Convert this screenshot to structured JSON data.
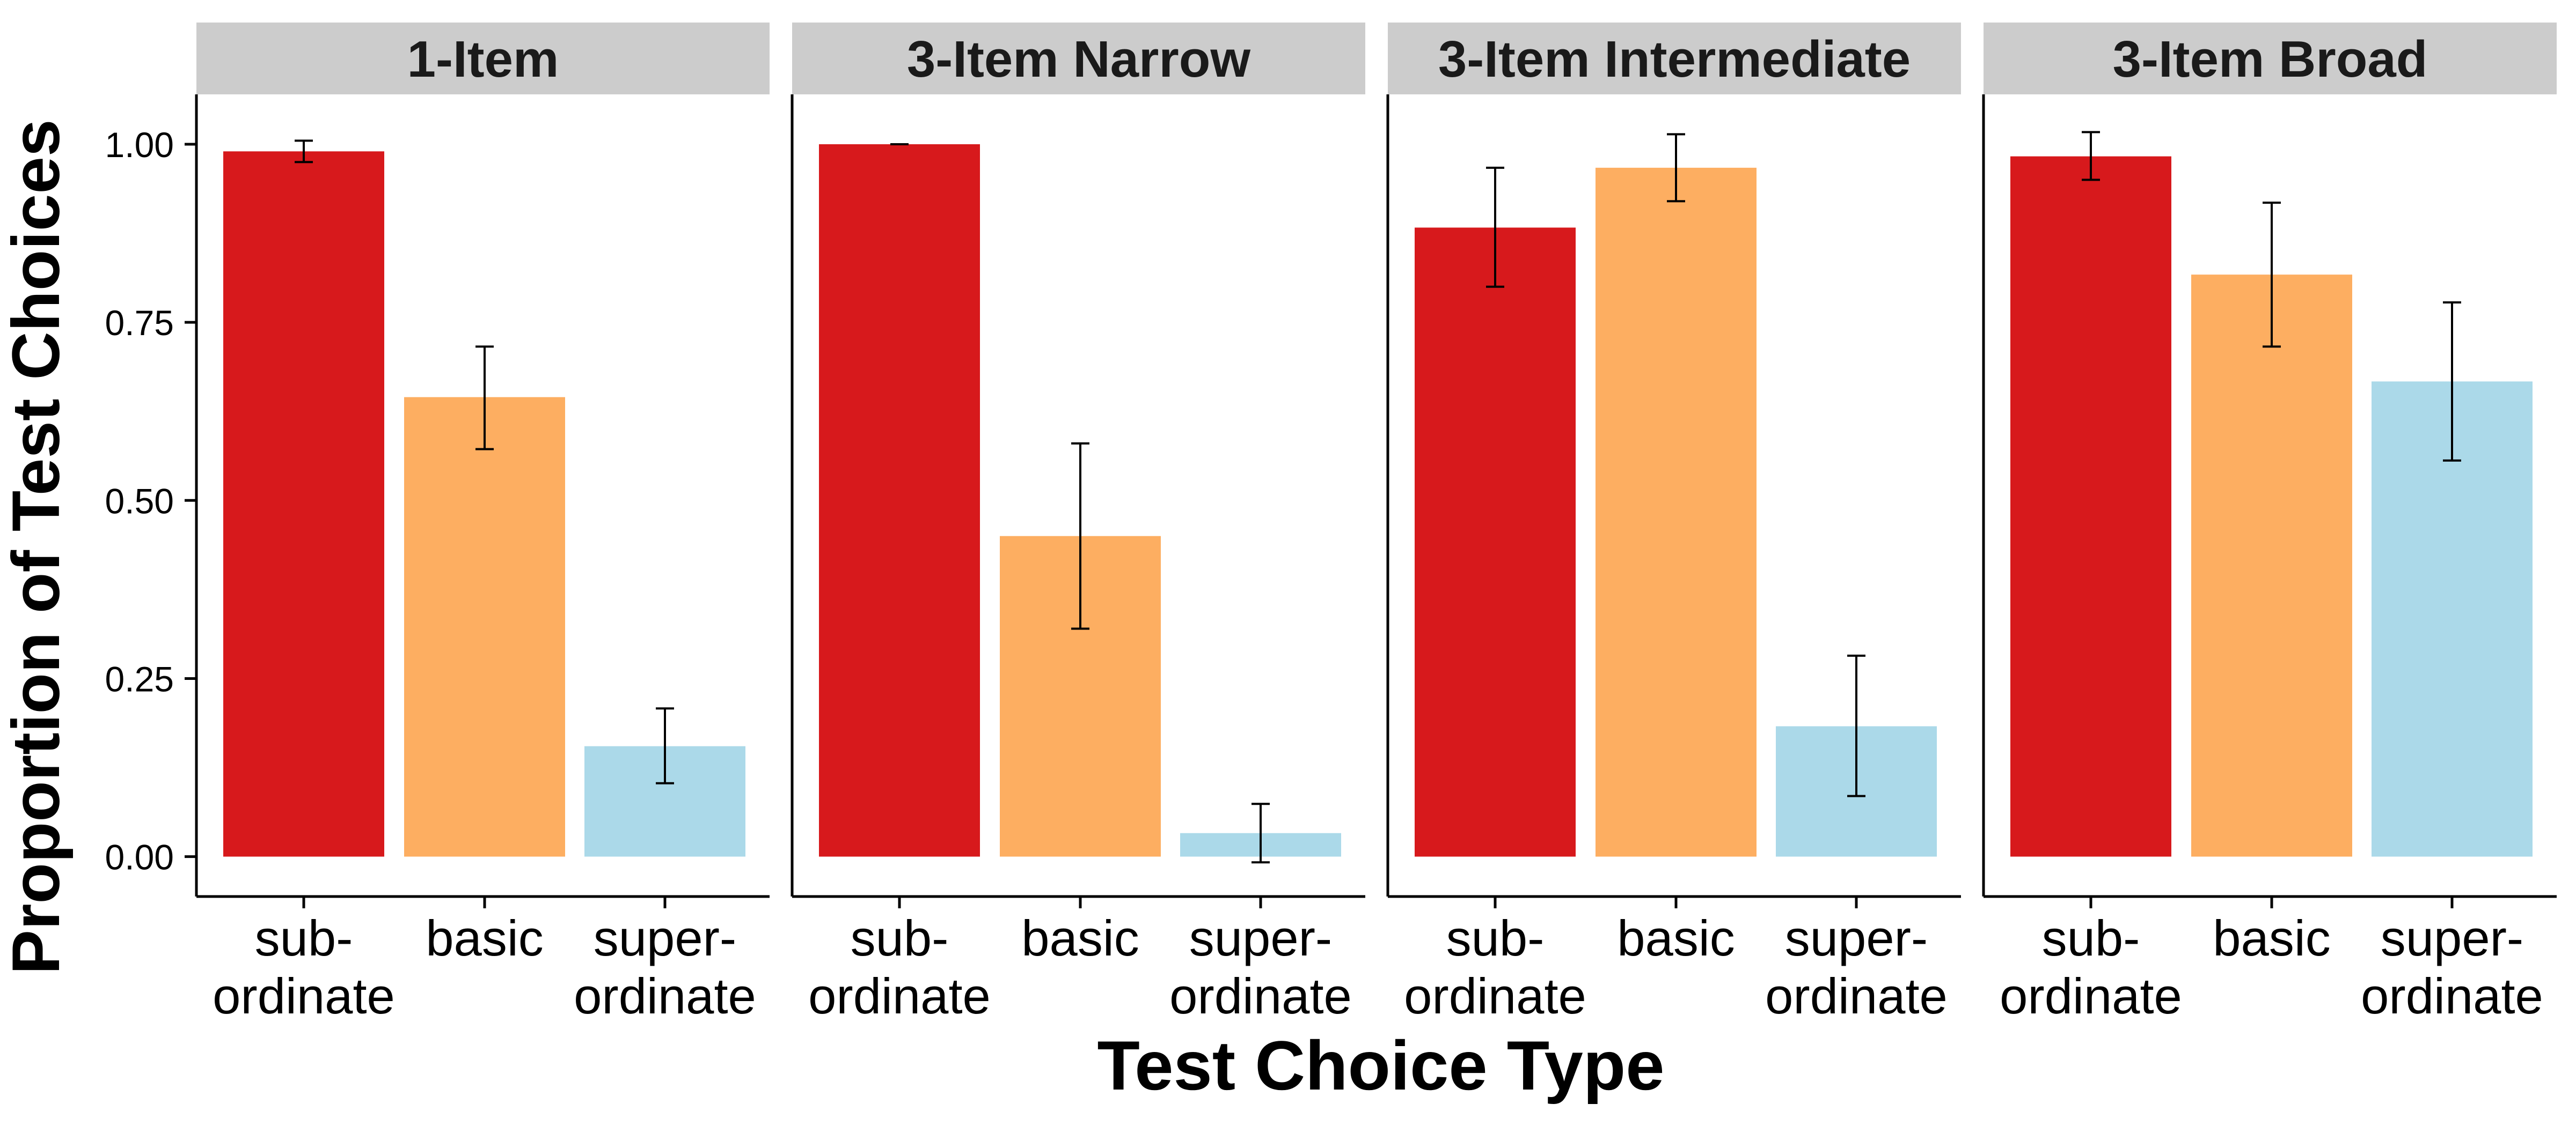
{
  "chart_data": {
    "type": "bar",
    "xlabel": "Test Choice Type",
    "ylabel": "Proportion of Test Choices",
    "ylim": [
      -0.056,
      1.07
    ],
    "yticks": [
      0.0,
      0.25,
      0.5,
      0.75,
      1.0
    ],
    "ytick_labels": [
      "0.00",
      "0.25",
      "0.50",
      "0.75",
      "1.00"
    ],
    "grid": false,
    "legend": "none",
    "categories": [
      {
        "key": "subordinate",
        "lines": [
          "sub-",
          "ordinate"
        ],
        "color": "#D7191C"
      },
      {
        "key": "basic",
        "lines": [
          "basic"
        ],
        "color": "#FDAE61"
      },
      {
        "key": "superordinate",
        "lines": [
          "super-",
          "ordinate"
        ],
        "color": "#ABD9E9"
      }
    ],
    "panels": [
      {
        "title": "1-Item",
        "values": [
          0.99,
          0.645,
          0.155
        ],
        "error": [
          [
            0.975,
            1.005
          ],
          [
            0.572,
            0.716
          ],
          [
            0.103,
            0.208
          ]
        ]
      },
      {
        "title": "3-Item Narrow",
        "values": [
          1.0,
          0.45,
          0.033
        ],
        "error": [
          [
            1.0,
            1.0
          ],
          [
            0.32,
            0.58
          ],
          [
            -0.008,
            0.074
          ]
        ]
      },
      {
        "title": "3-Item Intermediate",
        "values": [
          0.883,
          0.967,
          0.183
        ],
        "error": [
          [
            0.8,
            0.967
          ],
          [
            0.92,
            1.014
          ],
          [
            0.085,
            0.282
          ]
        ]
      },
      {
        "title": "3-Item Broad",
        "values": [
          0.983,
          0.817,
          0.667
        ],
        "error": [
          [
            0.95,
            1.017
          ],
          [
            0.716,
            0.918
          ],
          [
            0.556,
            0.778
          ]
        ]
      }
    ]
  }
}
